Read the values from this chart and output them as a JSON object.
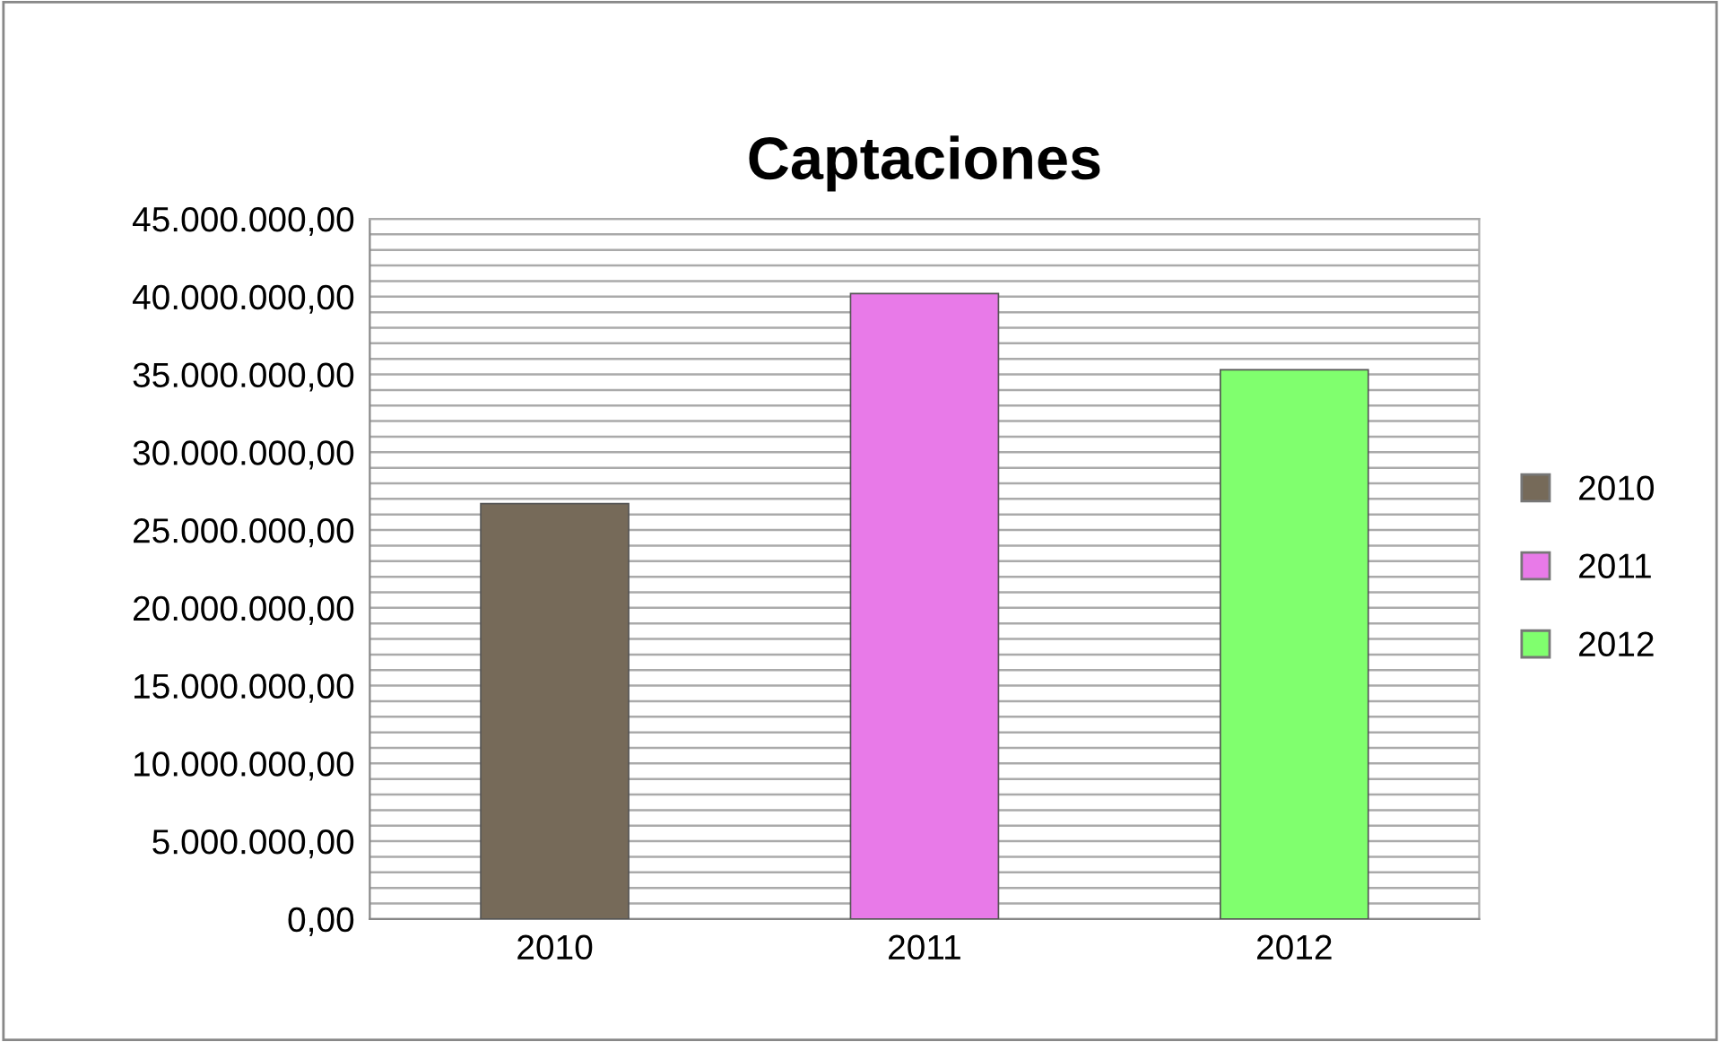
{
  "chart_data": {
    "type": "bar",
    "title": "Captaciones",
    "categories": [
      "2010",
      "2011",
      "2012"
    ],
    "series": [
      {
        "name": "2010",
        "color": "#766a59",
        "values": [
          26700000,
          null,
          null
        ]
      },
      {
        "name": "2011",
        "color": "#e87ae8",
        "values": [
          null,
          40200000,
          null
        ]
      },
      {
        "name": "2012",
        "color": "#80ff6e",
        "values": [
          null,
          null,
          35300000
        ]
      }
    ],
    "ylim": [
      0,
      45000000
    ],
    "yticks": [
      {
        "value": 0,
        "label": "0,00"
      },
      {
        "value": 1000000,
        "label": null
      },
      {
        "value": 2000000,
        "label": null
      },
      {
        "value": 3000000,
        "label": null
      },
      {
        "value": 4000000,
        "label": null
      },
      {
        "value": 5000000,
        "label": "5.000.000,00"
      },
      {
        "value": 6000000,
        "label": null
      },
      {
        "value": 7000000,
        "label": null
      },
      {
        "value": 8000000,
        "label": null
      },
      {
        "value": 9000000,
        "label": null
      },
      {
        "value": 10000000,
        "label": "10.000.000,00"
      },
      {
        "value": 11000000,
        "label": null
      },
      {
        "value": 12000000,
        "label": null
      },
      {
        "value": 13000000,
        "label": null
      },
      {
        "value": 14000000,
        "label": null
      },
      {
        "value": 15000000,
        "label": "15.000.000,00"
      },
      {
        "value": 16000000,
        "label": null
      },
      {
        "value": 17000000,
        "label": null
      },
      {
        "value": 18000000,
        "label": null
      },
      {
        "value": 19000000,
        "label": null
      },
      {
        "value": 20000000,
        "label": "20.000.000,00"
      },
      {
        "value": 21000000,
        "label": null
      },
      {
        "value": 22000000,
        "label": null
      },
      {
        "value": 23000000,
        "label": null
      },
      {
        "value": 24000000,
        "label": null
      },
      {
        "value": 25000000,
        "label": "25.000.000,00"
      },
      {
        "value": 26000000,
        "label": null
      },
      {
        "value": 27000000,
        "label": null
      },
      {
        "value": 28000000,
        "label": null
      },
      {
        "value": 29000000,
        "label": null
      },
      {
        "value": 30000000,
        "label": "30.000.000,00"
      },
      {
        "value": 31000000,
        "label": null
      },
      {
        "value": 32000000,
        "label": null
      },
      {
        "value": 33000000,
        "label": null
      },
      {
        "value": 34000000,
        "label": null
      },
      {
        "value": 35000000,
        "label": "35.000.000,00"
      },
      {
        "value": 36000000,
        "label": null
      },
      {
        "value": 37000000,
        "label": null
      },
      {
        "value": 38000000,
        "label": null
      },
      {
        "value": 39000000,
        "label": null
      },
      {
        "value": 40000000,
        "label": "40.000.000,00"
      },
      {
        "value": 41000000,
        "label": null
      },
      {
        "value": 42000000,
        "label": null
      },
      {
        "value": 43000000,
        "label": null
      },
      {
        "value": 44000000,
        "label": null
      },
      {
        "value": 45000000,
        "label": "45.000.000,00"
      }
    ],
    "grid": "y",
    "legend": "right"
  }
}
